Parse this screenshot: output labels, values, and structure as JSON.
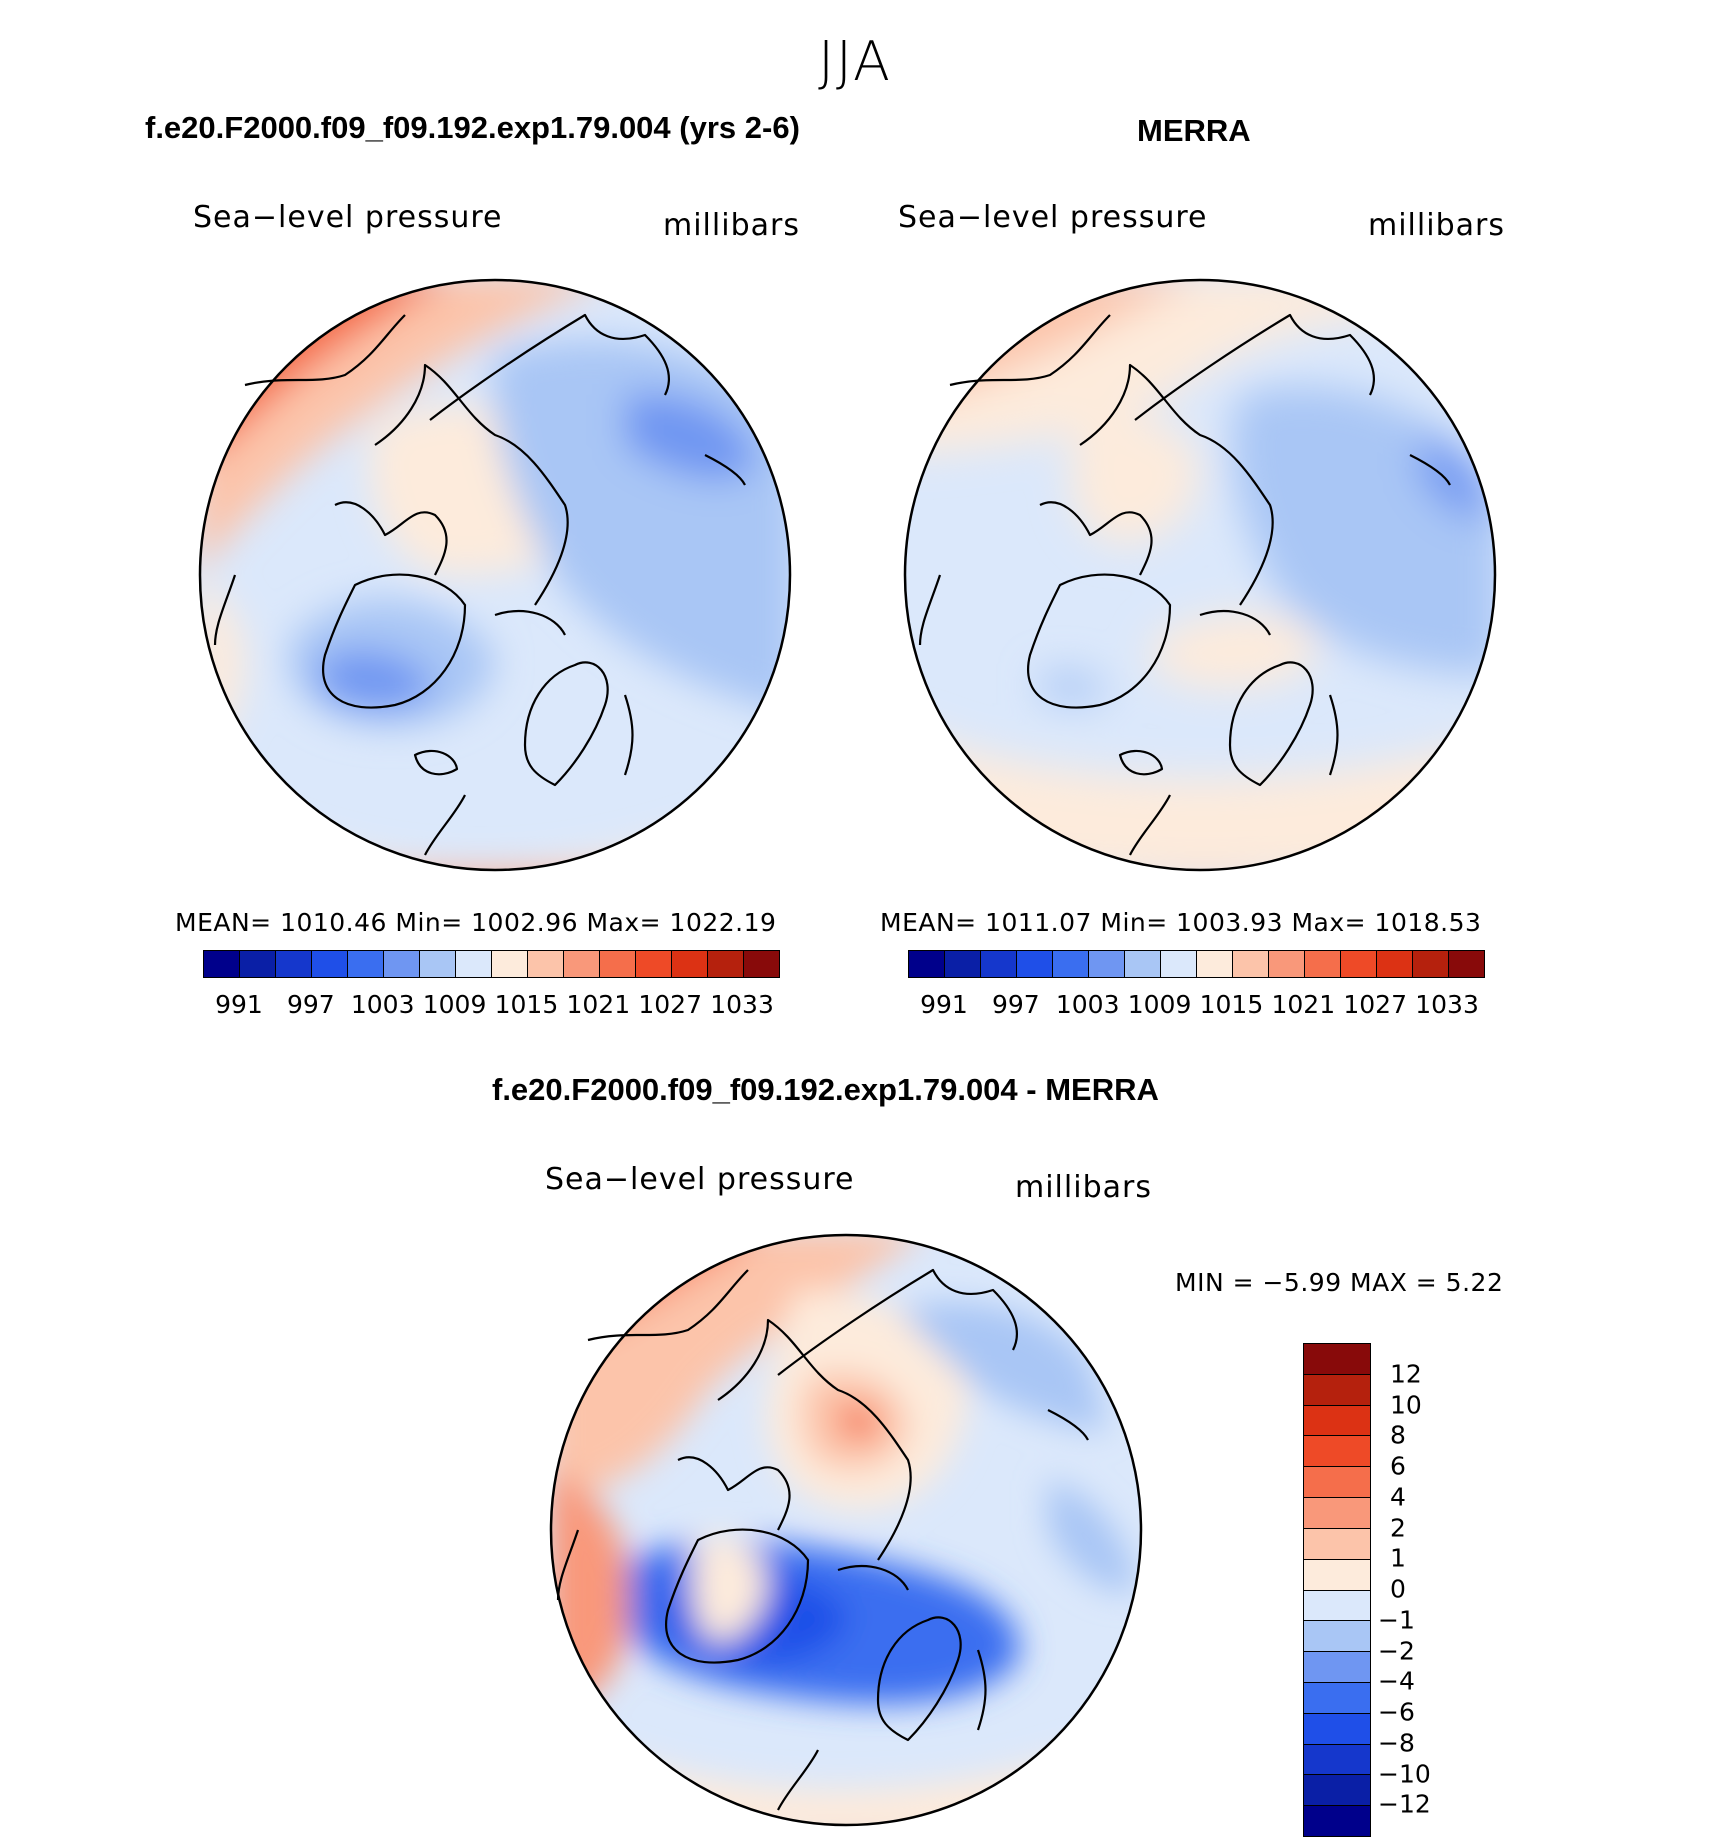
{
  "season": "JJA",
  "colors": {
    "abs_scale": [
      "#00008b",
      "#0a1fa6",
      "#1537cc",
      "#1f4fe8",
      "#3a6ef0",
      "#6f96f2",
      "#a9c6f5",
      "#dbe8fb",
      "#fdebdc",
      "#fcc4aa",
      "#f9987a",
      "#f56e4b",
      "#ee4a27",
      "#dc3214",
      "#b5210d",
      "#880a0a"
    ],
    "diff_scale": [
      "#880a0a",
      "#b5210d",
      "#dc3214",
      "#ee4a27",
      "#f56e4b",
      "#f9987a",
      "#fcc4aa",
      "#fdebdc",
      "#dbe8fb",
      "#a9c6f5",
      "#6f96f2",
      "#3a6ef0",
      "#1f4fe8",
      "#1537cc",
      "#0a1fa6",
      "#00008b"
    ]
  },
  "panels": {
    "model": {
      "title": "f.e20.F2000.f09_f09.192.exp1.79.004 (yrs 2-6)",
      "variable": "Sea−level pressure",
      "units": "millibars",
      "stats": "MEAN=  1010.46    Min=  1002.96    Max=  1022.19",
      "tick_labels": [
        "991",
        "997",
        "1003",
        "1009",
        "1015",
        "1021",
        "1027",
        "1033"
      ]
    },
    "obs": {
      "title": "MERRA",
      "variable": "Sea−level pressure",
      "units": "millibars",
      "stats": "MEAN=  1011.07    Min=  1003.93    Max=  1018.53",
      "tick_labels": [
        "991",
        "997",
        "1003",
        "1009",
        "1015",
        "1021",
        "1027",
        "1033"
      ]
    },
    "diff": {
      "title": "f.e20.F2000.f09_f09.192.exp1.79.004 - MERRA",
      "variable": "Sea−level pressure",
      "units": "millibars",
      "stats": "MIN =     −5.99  MAX =      5.22",
      "tick_labels": [
        "12",
        "10",
        "8",
        "6",
        "4",
        "2",
        "1",
        "0",
        "−1",
        "−2",
        "−4",
        "−6",
        "−8",
        "−10",
        "−12"
      ]
    }
  }
}
